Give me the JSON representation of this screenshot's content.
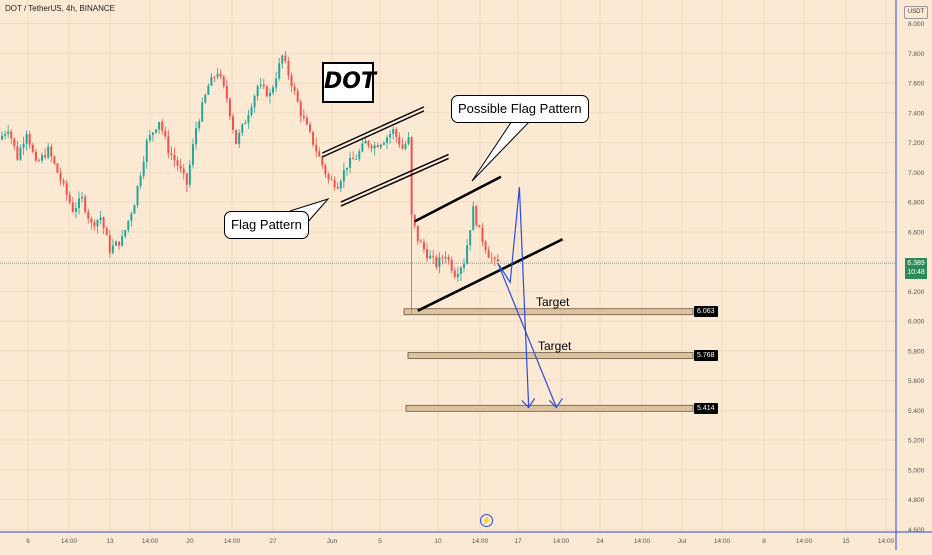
{
  "header": {
    "symbol_line": "DOT / TetherUS, 4h, BINANCE",
    "currency": "USDT"
  },
  "current_price": {
    "value": "6.389",
    "countdown": "10:48"
  },
  "annotations": {
    "title": "DOT",
    "flag_pattern": "Flag Pattern",
    "possible_flag_pattern": "Possible Flag Pattern",
    "target_1": "Target",
    "target_2": "Target"
  },
  "targets": [
    {
      "price": 6.063,
      "label": "6.063"
    },
    {
      "price": 5.768,
      "label": "5.768"
    },
    {
      "price": 5.414,
      "label": "5.414"
    }
  ],
  "colors": {
    "background": "#fbe9d3",
    "bull": "#26a69a",
    "bear": "#ef5350",
    "projection": "#2b4ce0",
    "current_line": "#2e8b57",
    "target_zone": "#dcc3a0"
  },
  "chart_data": {
    "type": "candlestick",
    "title": "DOT",
    "xlabel": "",
    "ylabel": "",
    "ylim": [
      4.6,
      8.1
    ],
    "y_ticks": [
      8.0,
      7.8,
      7.6,
      7.4,
      7.2,
      7.0,
      6.8,
      6.6,
      6.4,
      6.2,
      6.0,
      5.8,
      5.6,
      5.4,
      5.2,
      5.0,
      4.8,
      4.6
    ],
    "y_tick_labels": [
      "8.000",
      "7.800",
      "7.600",
      "7.400",
      "7.200",
      "7.000",
      "6.800",
      "6.600",
      "6.400",
      "6.200",
      "6.000",
      "5.800",
      "5.600",
      "5.400",
      "5.200",
      "5.000",
      "4.800",
      "4.600"
    ],
    "x_tick_labels": [
      "6",
      "14:00",
      "13",
      "14:00",
      "20",
      "14:00",
      "27",
      "Jun",
      "5",
      "10",
      "14:00",
      "17",
      "14:00",
      "24",
      "14:00",
      "Jul",
      "14:00",
      "8",
      "14:00",
      "15",
      "14:00"
    ],
    "grid": true,
    "current_price": 6.389,
    "price_path": [
      [
        0,
        7.22
      ],
      [
        3,
        7.3
      ],
      [
        6,
        7.1
      ],
      [
        9,
        7.28
      ],
      [
        12,
        7.05
      ],
      [
        16,
        7.15
      ],
      [
        20,
        6.95
      ],
      [
        24,
        6.75
      ],
      [
        27,
        6.82
      ],
      [
        30,
        6.65
      ],
      [
        33,
        6.7
      ],
      [
        36,
        6.48
      ],
      [
        40,
        6.55
      ],
      [
        44,
        6.8
      ],
      [
        48,
        7.2
      ],
      [
        52,
        7.35
      ],
      [
        55,
        7.15
      ],
      [
        58,
        7.05
      ],
      [
        61,
        6.92
      ],
      [
        64,
        7.3
      ],
      [
        68,
        7.58
      ],
      [
        71,
        7.68
      ],
      [
        74,
        7.5
      ],
      [
        77,
        7.2
      ],
      [
        80,
        7.35
      ],
      [
        84,
        7.58
      ],
      [
        88,
        7.52
      ],
      [
        92,
        7.78
      ],
      [
        95,
        7.6
      ],
      [
        98,
        7.4
      ],
      [
        101,
        7.25
      ],
      [
        104,
        7.1
      ],
      [
        107,
        6.95
      ],
      [
        110,
        6.92
      ],
      [
        113,
        7.05
      ],
      [
        116,
        7.1
      ],
      [
        119,
        7.2
      ],
      [
        122,
        7.18
      ],
      [
        125,
        7.22
      ],
      [
        128,
        7.28
      ],
      [
        131,
        7.16
      ],
      [
        133,
        7.22
      ],
      [
        134,
        6.7
      ],
      [
        136,
        6.55
      ],
      [
        139,
        6.45
      ],
      [
        142,
        6.38
      ],
      [
        145,
        6.45
      ],
      [
        148,
        6.32
      ],
      [
        151,
        6.4
      ],
      [
        154,
        6.75
      ],
      [
        156,
        6.6
      ],
      [
        159,
        6.45
      ],
      [
        161,
        6.389
      ]
    ],
    "patterns": {
      "flag_pattern_upper": [
        [
          104,
          7.13
        ],
        [
          137,
          7.44
        ]
      ],
      "flag_pattern_lower": [
        [
          110,
          6.8
        ],
        [
          145,
          7.12
        ]
      ],
      "possible_flag_upper": [
        [
          134,
          6.67
        ],
        [
          162,
          6.97
        ]
      ],
      "possible_flag_lower": [
        [
          135,
          6.07
        ],
        [
          182,
          6.55
        ]
      ]
    },
    "projections": [
      [
        [
          161,
          6.389
        ],
        [
          165,
          6.26
        ],
        [
          168,
          6.9
        ],
        [
          171,
          5.42
        ]
      ],
      [
        [
          161,
          6.389
        ],
        [
          180,
          5.42
        ]
      ]
    ]
  }
}
